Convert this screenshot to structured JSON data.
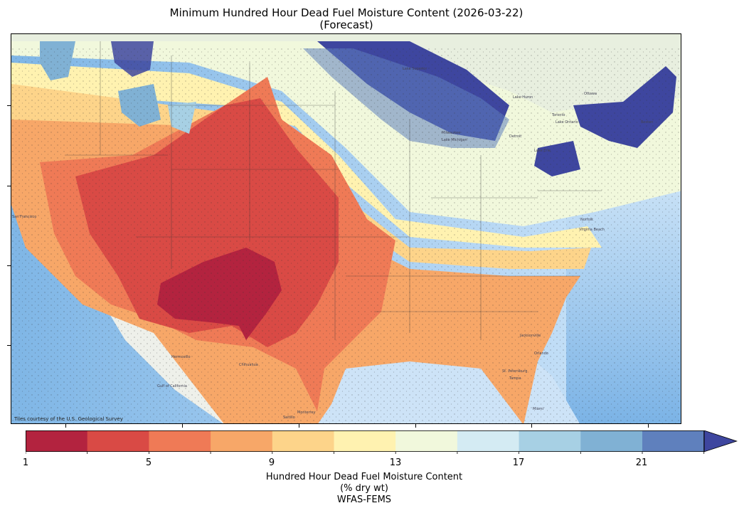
{
  "title": {
    "line1": "Minimum Hundred Hour Dead Fuel Moisture Content (2026-03-22)",
    "line2": "(Forecast)"
  },
  "map": {
    "attribution": "Tiles courtesy of the U.S. Geological Survey",
    "basemap_labels": [
      "Hermosillo",
      "Chihuahua",
      "Monterrey",
      "Gulf of California",
      "Lake Superior",
      "Lake Michigan",
      "Lake Huron",
      "Lake Erie",
      "Lake Ontario",
      "Milwaukee",
      "Ottawa",
      "San Francisco",
      "Jacksonville",
      "St. Petersburg",
      "Tampa",
      "Miami",
      "Toronto",
      "Detroit",
      "Boston",
      "Norfolk",
      "Saltillo",
      "Virginia Beach",
      "Orlando"
    ]
  },
  "colorbar": {
    "tick_labels": [
      "1",
      "5",
      "9",
      "13",
      "17",
      "21"
    ],
    "colors": [
      "#b3233f",
      "#d94a45",
      "#ef7a56",
      "#f7a768",
      "#fdd48a",
      "#fff2b0",
      "#f1f8dc",
      "#d4ebf3",
      "#a7d0e4",
      "#80b1d4",
      "#5f80bd",
      "#3e469f"
    ],
    "label_line1": "Hundred Hour Dead Fuel Moisture Content",
    "label_line2": "(% dry wt)",
    "label_line3": "WFAS-FEMS"
  }
}
